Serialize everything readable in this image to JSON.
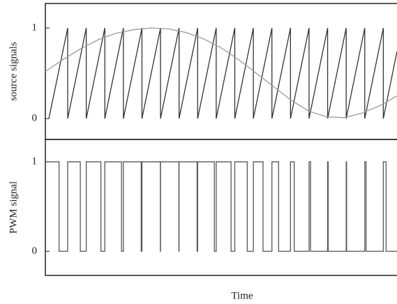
{
  "chart_data": [
    {
      "type": "line",
      "ylabel": "source signals",
      "xlim": [
        0,
        1
      ],
      "ylim": [
        -0.23,
        1.27
      ],
      "yticks": [
        0,
        1
      ],
      "series": [
        {
          "color": "#333333",
          "x": [
            0.01,
            0.0635,
            0.0635,
            0.1163,
            0.1163,
            0.1691,
            0.1691,
            0.2219,
            0.2219,
            0.2747,
            0.2747,
            0.3275,
            0.3275,
            0.3803,
            0.3803,
            0.4331,
            0.4331,
            0.4859,
            0.4859,
            0.5387,
            0.5387,
            0.5915,
            0.5915,
            0.6443,
            0.6443,
            0.6971,
            0.6971,
            0.7499,
            0.7499,
            0.8027,
            0.8027,
            0.8555,
            0.8555,
            0.9083,
            0.9083,
            0.9611,
            0.9611,
            1.0
          ],
          "values": [
            0,
            1,
            0,
            1,
            0,
            1,
            0,
            1,
            0,
            1,
            0,
            1,
            0,
            1,
            0,
            1,
            0,
            1,
            0,
            1,
            0,
            1,
            0,
            1,
            0,
            1,
            0,
            1,
            0,
            1,
            0,
            1,
            0,
            1,
            0,
            1,
            0,
            0.74
          ]
        },
        {
          "color": "#9a9a9a",
          "x": [
            0,
            0.05,
            0.1,
            0.15,
            0.2,
            0.25,
            0.3,
            0.35,
            0.4,
            0.45,
            0.5,
            0.55,
            0.6,
            0.65,
            0.7,
            0.75,
            0.8,
            0.85,
            0.9,
            0.95,
            1.0
          ],
          "values": [
            0.52,
            0.65,
            0.77,
            0.87,
            0.94,
            0.98,
            1.0,
            0.99,
            0.95,
            0.88,
            0.78,
            0.65,
            0.5,
            0.35,
            0.2,
            0.08,
            0.02,
            0.01,
            0.06,
            0.14,
            0.25
          ]
        }
      ]
    },
    {
      "type": "line",
      "ylabel": "PWM signal",
      "xlabel": "Time",
      "xlim": [
        0,
        1
      ],
      "ylim": [
        -0.27,
        1.25
      ],
      "yticks": [
        0,
        1
      ],
      "series": [
        {
          "color": "#555555",
          "x": [
            0,
            0.039,
            0.039,
            0.0635,
            0.0635,
            0.0994,
            0.0994,
            0.1163,
            0.1163,
            0.158,
            0.158,
            0.1691,
            0.1691,
            0.2166,
            0.2166,
            0.2219,
            0.2219,
            0.2726,
            0.2726,
            0.2747,
            0.2747,
            0.327,
            0.327,
            0.3275,
            0.3275,
            0.3798,
            0.3798,
            0.3803,
            0.3803,
            0.4315,
            0.4315,
            0.4331,
            0.4331,
            0.4806,
            0.4806,
            0.4859,
            0.4859,
            0.5281,
            0.5281,
            0.5387,
            0.5387,
            0.5741,
            0.5741,
            0.5915,
            0.5915,
            0.619,
            0.619,
            0.6443,
            0.6443,
            0.6633,
            0.6633,
            0.6971,
            0.6971,
            0.7077,
            0.7077,
            0.7499,
            0.7499,
            0.7541,
            0.7541,
            0.8027,
            0.8027,
            0.8043,
            0.8043,
            0.8555,
            0.8555,
            0.8566,
            0.8566,
            0.9083,
            0.9083,
            0.912,
            0.912,
            0.9611,
            0.9611,
            0.969,
            0.969,
            1.0
          ],
          "values": [
            1,
            1,
            0,
            0,
            1,
            1,
            0,
            0,
            1,
            1,
            0,
            0,
            1,
            1,
            0,
            0,
            1,
            1,
            0,
            0,
            1,
            1,
            0,
            0,
            1,
            1,
            0,
            0,
            1,
            1,
            0,
            0,
            1,
            1,
            0,
            0,
            1,
            1,
            0,
            0,
            1,
            1,
            0,
            0,
            1,
            1,
            0,
            0,
            1,
            1,
            0,
            0,
            1,
            1,
            0,
            0,
            1,
            1,
            0,
            0,
            1,
            1,
            0,
            0,
            1,
            1,
            0,
            0,
            1,
            1,
            0,
            0,
            1,
            1,
            0,
            0
          ]
        }
      ]
    }
  ]
}
